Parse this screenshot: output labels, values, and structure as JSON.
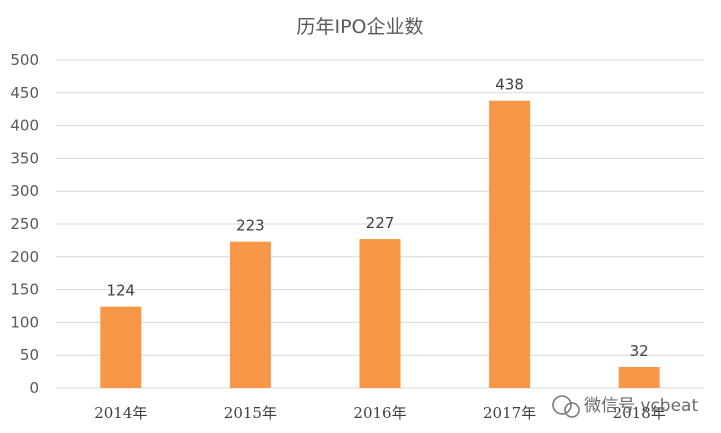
{
  "chart_data": {
    "type": "bar",
    "title": "历年IPO企业数",
    "categories": [
      "2014年",
      "2015年",
      "2016年",
      "2017年",
      "2018年"
    ],
    "values": [
      124,
      223,
      227,
      438,
      32
    ],
    "ylim": [
      0,
      500
    ],
    "yticks": [
      0,
      50,
      100,
      150,
      200,
      250,
      300,
      350,
      400,
      450,
      500
    ],
    "xlabel": "",
    "ylabel": "",
    "grid": true,
    "legend": "none",
    "bar_color": "#F79646",
    "grid_color": "#D9D9D9"
  },
  "watermark": {
    "text": "微信号 vcbeat",
    "icon": "wechat-icon"
  }
}
